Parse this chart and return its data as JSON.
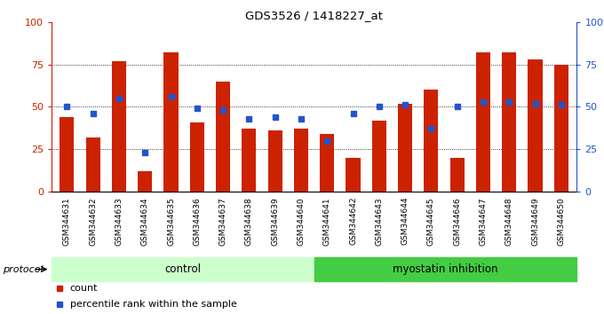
{
  "title": "GDS3526 / 1418227_at",
  "samples": [
    "GSM344631",
    "GSM344632",
    "GSM344633",
    "GSM344634",
    "GSM344635",
    "GSM344636",
    "GSM344637",
    "GSM344638",
    "GSM344639",
    "GSM344640",
    "GSM344641",
    "GSM344642",
    "GSM344643",
    "GSM344644",
    "GSM344645",
    "GSM344646",
    "GSM344647",
    "GSM344648",
    "GSM344649",
    "GSM344650"
  ],
  "bar_values": [
    44,
    32,
    77,
    12,
    82,
    41,
    65,
    37,
    36,
    37,
    34,
    20,
    42,
    52,
    60,
    20,
    82,
    82,
    78,
    75
  ],
  "dot_values": [
    50,
    46,
    55,
    23,
    56,
    49,
    48,
    43,
    44,
    43,
    30,
    46,
    50,
    51,
    37,
    50,
    53,
    53,
    52,
    51
  ],
  "bar_color": "#cc2200",
  "dot_color": "#2255cc",
  "control_count": 10,
  "myostatin_count": 10,
  "control_label": "control",
  "myostatin_label": "myostatin inhibition",
  "protocol_label": "protocol",
  "legend_bar": "count",
  "legend_dot": "percentile rank within the sample",
  "ylim": [
    0,
    100
  ],
  "yticks": [
    0,
    25,
    50,
    75,
    100
  ],
  "bg_color": "#ffffff",
  "control_bg": "#ccffcc",
  "myostatin_bg": "#44cc44",
  "xticklabel_bg": "#c8c8c8"
}
